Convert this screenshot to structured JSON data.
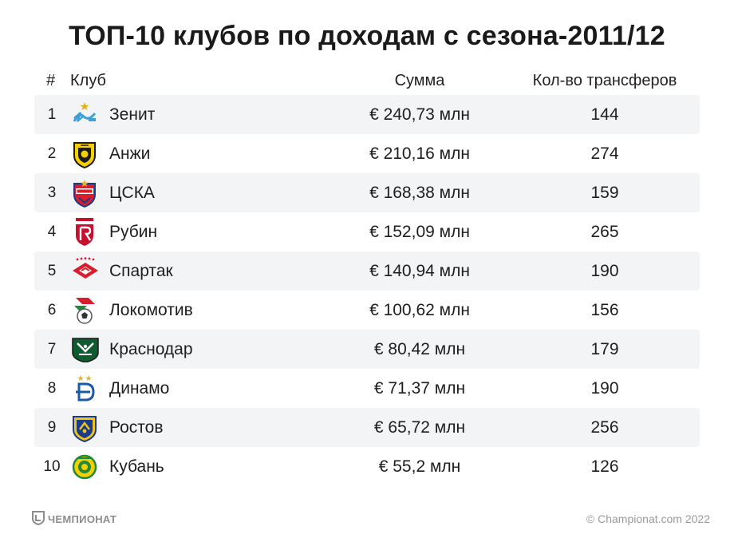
{
  "title": "ТОП-10 клубов по доходам с сезона-2011/12",
  "columns": {
    "num": "#",
    "club": "Клуб",
    "sum": "Сумма",
    "transfers": "Кол-во трансферов"
  },
  "rows": [
    {
      "num": "1",
      "club": "Зенит",
      "sum": "€ 240,73 млн",
      "transfers": "144",
      "logo": "zenit-logo-icon"
    },
    {
      "num": "2",
      "club": "Анжи",
      "sum": "€ 210,16 млн",
      "transfers": "274",
      "logo": "anzhi-logo-icon"
    },
    {
      "num": "3",
      "club": "ЦСКА",
      "sum": "€ 168,38 млн",
      "transfers": "159",
      "logo": "cska-logo-icon"
    },
    {
      "num": "4",
      "club": "Рубин",
      "sum": "€ 152,09 млн",
      "transfers": "265",
      "logo": "rubin-logo-icon"
    },
    {
      "num": "5",
      "club": "Спартак",
      "sum": "€ 140,94 млн",
      "transfers": "190",
      "logo": "spartak-logo-icon"
    },
    {
      "num": "6",
      "club": "Локомотив",
      "sum": "€ 100,62 млн",
      "transfers": "156",
      "logo": "lokomotiv-logo-icon"
    },
    {
      "num": "7",
      "club": "Краснодар",
      "sum": "€ 80,42 млн",
      "transfers": "179",
      "logo": "krasnodar-logo-icon"
    },
    {
      "num": "8",
      "club": "Динамо",
      "sum": "€ 71,37 млн",
      "transfers": "190",
      "logo": "dinamo-logo-icon"
    },
    {
      "num": "9",
      "club": "Ростов",
      "sum": "€ 65,72 млн",
      "transfers": "256",
      "logo": "rostov-logo-icon"
    },
    {
      "num": "10",
      "club": "Кубань",
      "sum": "€ 55,2 млн",
      "transfers": "126",
      "logo": "kuban-logo-icon"
    }
  ],
  "footer": {
    "brand": "ЧЕМПИОНАТ",
    "copyright": "© Championat.com 2022"
  },
  "colors": {
    "row_shade": "#f3f4f6",
    "text": "#1e1e1e",
    "footer_text": "#9a9a9a"
  }
}
